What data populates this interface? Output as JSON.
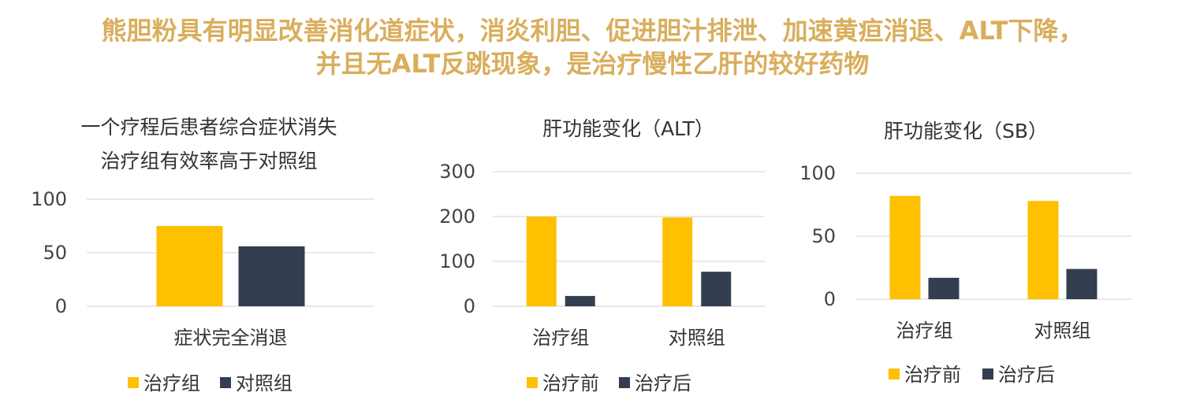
{
  "headline": {
    "line1": "熊胆粉具有明显改善消化道症状，消炎利胆、促进胆汁排泄、加速黄疸消退、ALT下降，",
    "line2": "并且无ALT反跳现象，是治疗慢性乙肝的较好药物"
  },
  "colors": {
    "gold": "#FFC000",
    "navy": "#333F50",
    "grid": "#D9D9D9"
  },
  "chart_data": [
    {
      "type": "bar",
      "title": "一个疗程后患者综合症状消失",
      "subtitle": "治疗组有效率高于对照组",
      "categories": [
        "症状完全消退"
      ],
      "series": [
        {
          "name": "治疗组",
          "values": [
            75
          ]
        },
        {
          "name": "对照组",
          "values": [
            56
          ]
        }
      ],
      "yticks": [
        "0",
        "50",
        "100"
      ],
      "ylim": [
        0,
        100
      ],
      "grid": true,
      "legend": "bottom"
    },
    {
      "type": "bar",
      "title": "肝功能变化（ALT）",
      "categories": [
        "治疗组",
        "对照组"
      ],
      "series": [
        {
          "name": "治疗前",
          "values": [
            200,
            198
          ]
        },
        {
          "name": "治疗后",
          "values": [
            23,
            77
          ]
        }
      ],
      "yticks": [
        "0",
        "100",
        "200",
        "300"
      ],
      "ylim": [
        0,
        300
      ],
      "grid": true,
      "legend": "bottom"
    },
    {
      "type": "bar",
      "title": "肝功能变化（SB）",
      "categories": [
        "治疗组",
        "对照组"
      ],
      "series": [
        {
          "name": "治疗前",
          "values": [
            82,
            78
          ]
        },
        {
          "name": "治疗后",
          "values": [
            17,
            24
          ]
        }
      ],
      "yticks": [
        "0",
        "50",
        "100"
      ],
      "ylim": [
        0,
        100
      ],
      "grid": true,
      "legend": "bottom"
    }
  ]
}
